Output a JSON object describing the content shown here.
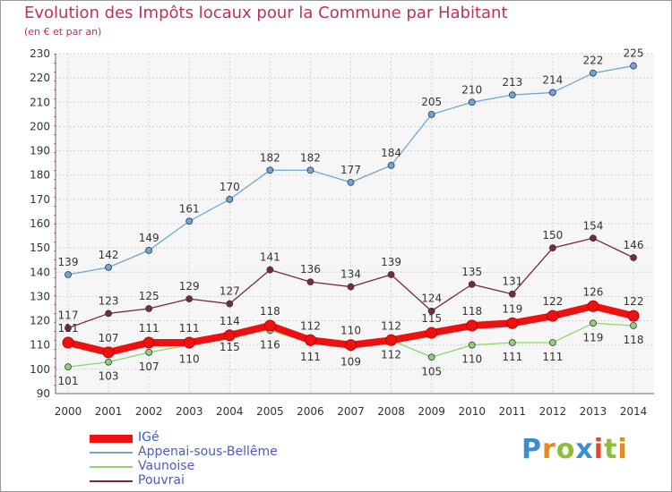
{
  "title": "Evolution des Impôts locaux pour la Commune par Habitant",
  "subtitle": "(en € et par an)",
  "logo": "Proxiti",
  "chart_data": {
    "type": "line",
    "x": [
      "2000",
      "2001",
      "2002",
      "2003",
      "2004",
      "2005",
      "2006",
      "2007",
      "2008",
      "2009",
      "2010",
      "2011",
      "2012",
      "2013",
      "2014"
    ],
    "ylim": [
      90,
      230
    ],
    "yticks": [
      90,
      100,
      110,
      120,
      130,
      140,
      150,
      160,
      170,
      180,
      190,
      200,
      210,
      220,
      230
    ],
    "grid": true,
    "legend": "bottom-left",
    "series": [
      {
        "name": "IGé",
        "color": "#ee1111",
        "values": [
          111,
          107,
          111,
          111,
          114,
          118,
          112,
          110,
          112,
          115,
          118,
          119,
          122,
          126,
          122
        ]
      },
      {
        "name": "Appenai-sous-Bellême",
        "color": "#6fa6d6",
        "values": [
          139,
          142,
          149,
          161,
          170,
          182,
          182,
          177,
          184,
          205,
          210,
          213,
          214,
          222,
          225
        ]
      },
      {
        "name": "Vaunoise",
        "color": "#8fd46a",
        "values": [
          101,
          103,
          107,
          110,
          115,
          116,
          111,
          109,
          112,
          105,
          110,
          111,
          111,
          119,
          118
        ]
      },
      {
        "name": "Pouvrai",
        "color": "#7a2b2b",
        "values": [
          117,
          123,
          125,
          129,
          127,
          141,
          136,
          134,
          139,
          124,
          135,
          131,
          150,
          154,
          146
        ]
      }
    ]
  }
}
